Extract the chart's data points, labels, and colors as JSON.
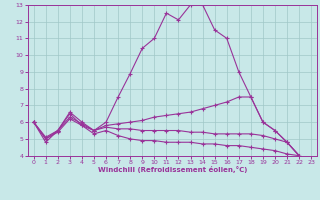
{
  "xlabel": "Windchill (Refroidissement éolien,°C)",
  "xlim": [
    -0.5,
    23.5
  ],
  "ylim": [
    4,
    13
  ],
  "yticks": [
    4,
    5,
    6,
    7,
    8,
    9,
    10,
    11,
    12,
    13
  ],
  "xticks": [
    0,
    1,
    2,
    3,
    4,
    5,
    6,
    7,
    8,
    9,
    10,
    11,
    12,
    13,
    14,
    15,
    16,
    17,
    18,
    19,
    20,
    21,
    22,
    23
  ],
  "background_color": "#c8e8e8",
  "grid_color": "#a0c8c8",
  "line_color": "#993399",
  "lines": [
    {
      "x": [
        0,
        1,
        2,
        3,
        4,
        5,
        6,
        7,
        8,
        9,
        10,
        11,
        12,
        13,
        14,
        15,
        16,
        17,
        18,
        19,
        20,
        21,
        22
      ],
      "y": [
        6.0,
        4.8,
        5.5,
        6.6,
        6.0,
        5.5,
        6.0,
        7.5,
        8.9,
        10.4,
        11.0,
        12.5,
        12.1,
        13.0,
        13.0,
        11.5,
        11.0,
        9.0,
        7.5,
        6.0,
        5.5,
        4.8,
        4.0
      ]
    },
    {
      "x": [
        0,
        1,
        2,
        3,
        4,
        5,
        6,
        7,
        8,
        9,
        10,
        11,
        12,
        13,
        14,
        15,
        16,
        17,
        18,
        19,
        20,
        21,
        22
      ],
      "y": [
        6.0,
        5.0,
        5.5,
        6.5,
        5.8,
        5.5,
        5.8,
        5.9,
        6.0,
        6.1,
        6.3,
        6.4,
        6.5,
        6.6,
        6.8,
        7.0,
        7.2,
        7.5,
        7.5,
        6.0,
        5.5,
        4.8,
        4.0
      ]
    },
    {
      "x": [
        0,
        1,
        2,
        3,
        4,
        5,
        6,
        7,
        8,
        9,
        10,
        11,
        12,
        13,
        14,
        15,
        16,
        17,
        18,
        19,
        20,
        21,
        22
      ],
      "y": [
        6.0,
        5.1,
        5.5,
        6.3,
        5.9,
        5.5,
        5.7,
        5.6,
        5.6,
        5.5,
        5.5,
        5.5,
        5.5,
        5.4,
        5.4,
        5.3,
        5.3,
        5.3,
        5.3,
        5.2,
        5.0,
        4.8,
        4.0
      ]
    },
    {
      "x": [
        0,
        1,
        2,
        3,
        4,
        5,
        6,
        7,
        8,
        9,
        10,
        11,
        12,
        13,
        14,
        15,
        16,
        17,
        18,
        19,
        20,
        21,
        22
      ],
      "y": [
        6.0,
        5.0,
        5.4,
        6.2,
        5.8,
        5.3,
        5.5,
        5.2,
        5.0,
        4.9,
        4.9,
        4.8,
        4.8,
        4.8,
        4.7,
        4.7,
        4.6,
        4.6,
        4.5,
        4.4,
        4.3,
        4.1,
        4.0
      ]
    }
  ]
}
